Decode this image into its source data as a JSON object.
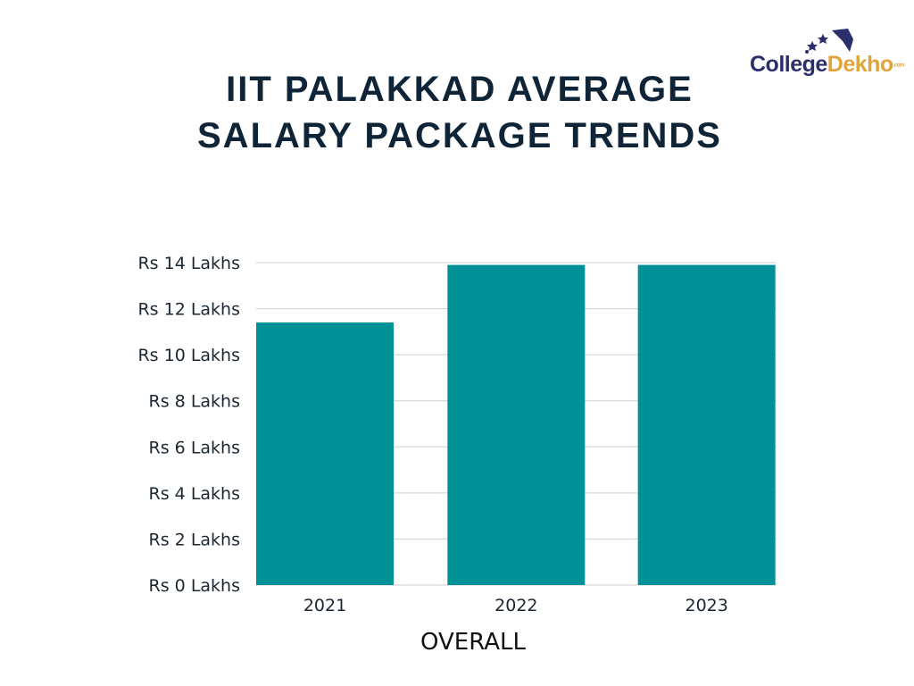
{
  "brand": {
    "part1": "College",
    "part2": "Dekho",
    "suffix": ".com"
  },
  "chart_data": {
    "type": "bar",
    "title": "IIT PALAKKAD AVERAGE SALARY PACKAGE TRENDS",
    "xlabel": "OVERALL",
    "ylabel": "",
    "categories": [
      "2021",
      "2022",
      "2023"
    ],
    "values": [
      11.4,
      13.9,
      13.9
    ],
    "unit": "Lakhs",
    "ylim": [
      0,
      14
    ],
    "yticks": [
      0,
      2,
      4,
      6,
      8,
      10,
      12,
      14
    ],
    "ytick_labels": [
      "Rs 0 Lakhs",
      "Rs 2 Lakhs",
      "Rs 4 Lakhs",
      "Rs 6 Lakhs",
      "Rs 8 Lakhs",
      "Rs 10 Lakhs",
      "Rs 12 Lakhs",
      "Rs 14 Lakhs"
    ],
    "grid": true,
    "bar_color": "#009196",
    "legend": "none"
  }
}
